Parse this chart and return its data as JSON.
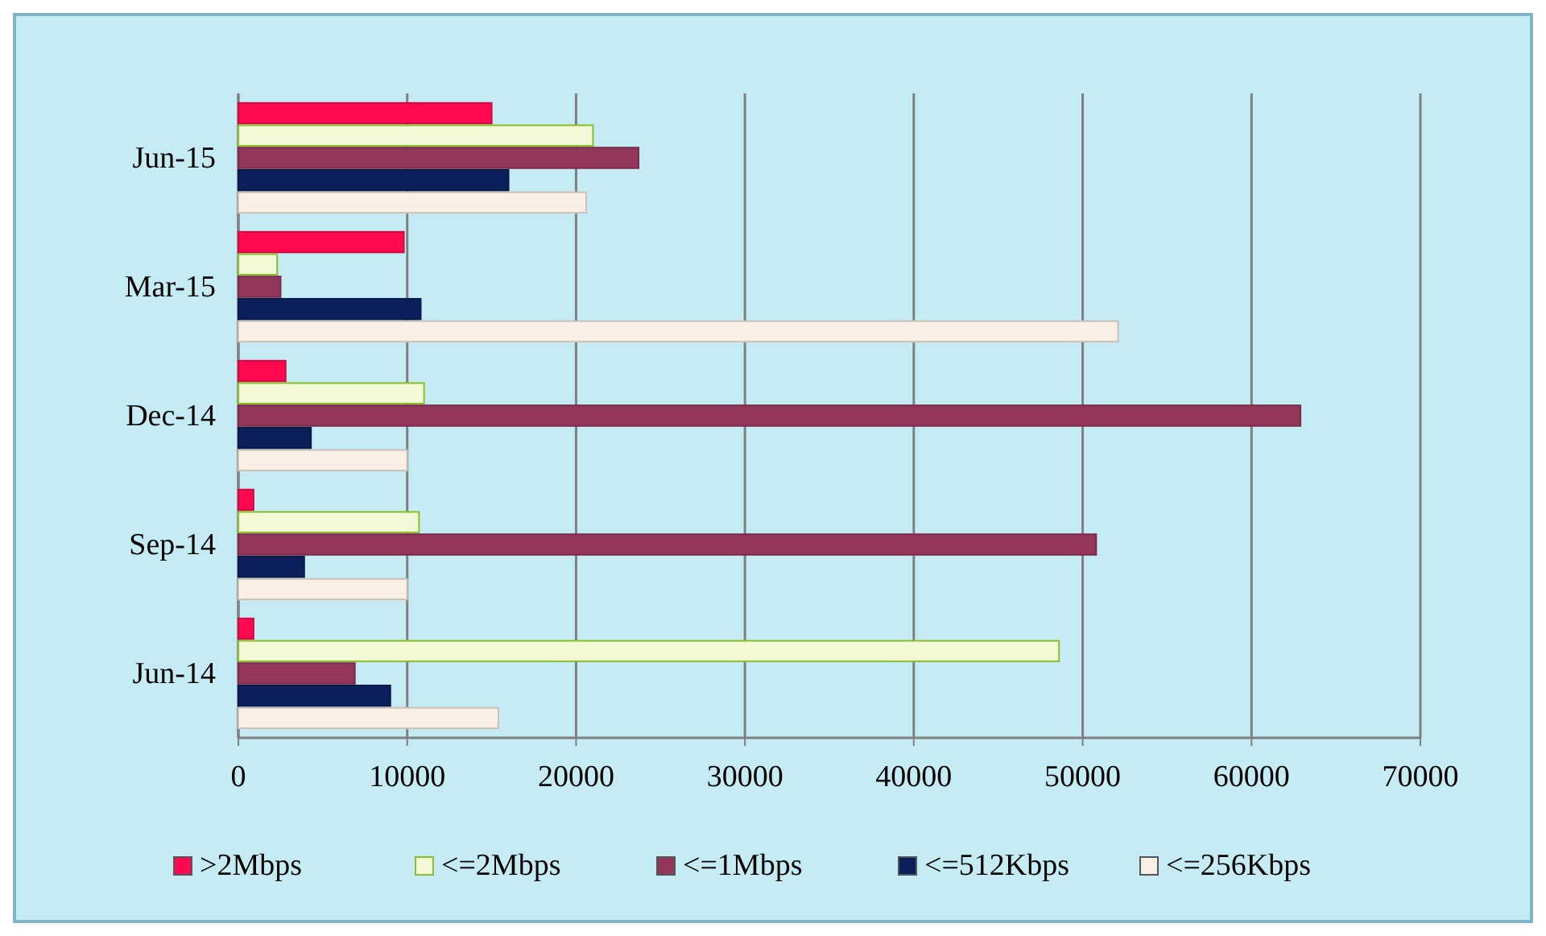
{
  "chart_data": {
    "type": "bar",
    "orientation": "horizontal",
    "categories": [
      "Jun-15",
      "Mar-15",
      "Dec-14",
      "Sep-14",
      "Jun-14"
    ],
    "series": [
      {
        "name": ">2Mbps",
        "color": "#ff0a50",
        "values": [
          15000,
          9800,
          2800,
          900,
          900
        ]
      },
      {
        "name": "<=2Mbps",
        "color": "#f3f9d6",
        "values": [
          21000,
          2300,
          11000,
          10700,
          48600
        ]
      },
      {
        "name": "<=1Mbps",
        "color": "#94365a",
        "values": [
          23700,
          2500,
          62900,
          50800,
          6900
        ]
      },
      {
        "name": "<=512Kbps",
        "color": "#0a1f5c",
        "values": [
          16000,
          10800,
          4300,
          3900,
          9000
        ]
      },
      {
        "name": "<=256Kbps",
        "color": "#fbeee4",
        "values": [
          20600,
          52100,
          10000,
          10000,
          15400
        ]
      }
    ],
    "xlim": [
      0,
      70000
    ],
    "xticks": [
      0,
      10000,
      20000,
      30000,
      40000,
      50000,
      60000,
      70000
    ],
    "grid": "x",
    "legend": "bottom"
  }
}
